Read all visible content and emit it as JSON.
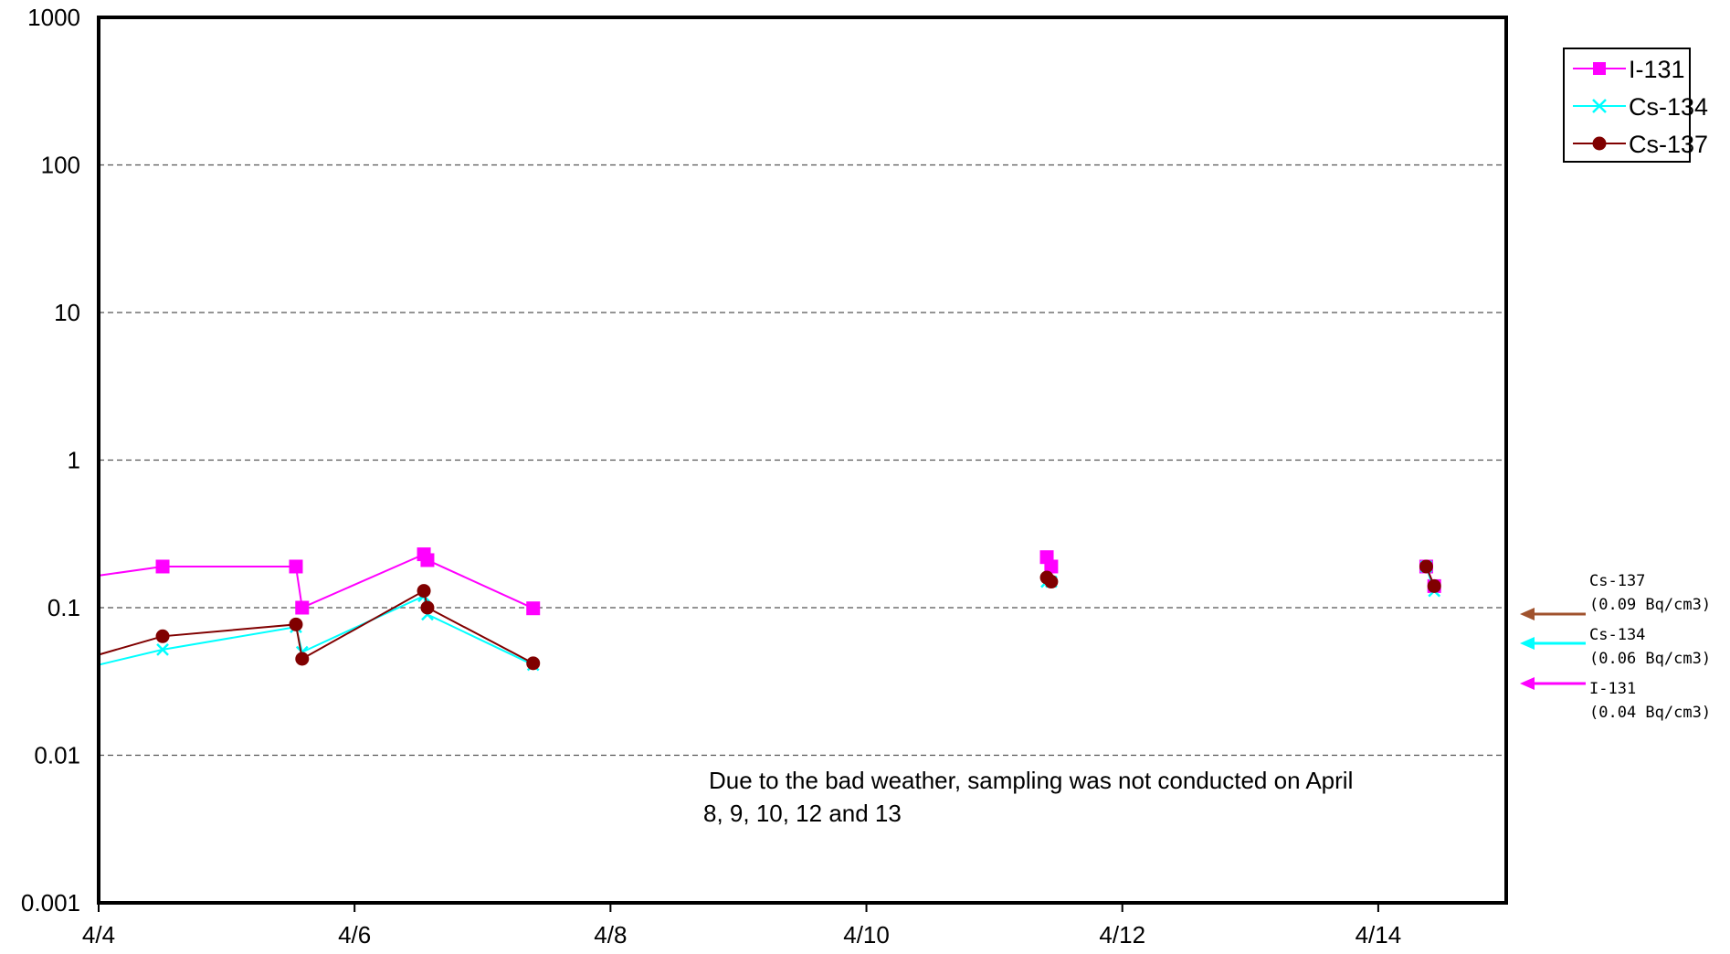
{
  "chart_data": {
    "type": "line",
    "yscale": "log",
    "ylim": [
      0.001,
      1000
    ],
    "yticks": [
      "1000",
      "100",
      "10",
      "1",
      "0.1",
      "0.01",
      "0.001"
    ],
    "xlim": [
      "4/4",
      "4/15 12:00"
    ],
    "xticks": [
      "4/4",
      "4/6",
      "4/8",
      "4/10",
      "4/12",
      "4/14"
    ],
    "grid": "horizontal dashed",
    "legend_position": "top-right",
    "series": [
      {
        "name": "I-131",
        "color": "#ff00ff",
        "marker": "square",
        "segments": [
          [
            [
              "4/4 00:00",
              0.165
            ],
            [
              "4/4 12:00",
              0.19
            ],
            [
              "4/5 13:00",
              0.19
            ],
            [
              "4/5 14:10",
              0.1
            ],
            [
              "4/6 13:00",
              0.23
            ],
            [
              "4/6 13:40",
              0.21
            ],
            [
              "4/7 09:30",
              0.099
            ]
          ],
          [
            [
              "4/11 09:50",
              0.22
            ],
            [
              "4/11 10:40",
              0.19
            ]
          ],
          [
            [
              "4/14 09:00",
              0.19
            ],
            [
              "4/14 10:30",
              0.14
            ]
          ]
        ]
      },
      {
        "name": "Cs-134",
        "color": "#00ffff",
        "marker": "x",
        "segments": [
          [
            [
              "4/4 00:00",
              0.041
            ],
            [
              "4/4 12:00",
              0.052
            ],
            [
              "4/5 13:00",
              0.074
            ],
            [
              "4/5 14:10",
              0.05
            ],
            [
              "4/6 13:00",
              0.12
            ],
            [
              "4/6 13:40",
              0.09
            ],
            [
              "4/7 09:30",
              0.041
            ]
          ],
          [
            [
              "4/11 09:50",
              0.15
            ],
            [
              "4/11 10:40",
              0.15
            ]
          ],
          [
            [
              "4/14 09:00",
              0.19
            ],
            [
              "4/14 10:30",
              0.13
            ]
          ]
        ]
      },
      {
        "name": "Cs-137",
        "color": "#800000",
        "marker": "circle",
        "segments": [
          [
            [
              "4/4 00:00",
              0.048
            ],
            [
              "4/4 12:00",
              0.064
            ],
            [
              "4/5 13:00",
              0.077
            ],
            [
              "4/5 14:10",
              0.045
            ],
            [
              "4/6 13:00",
              0.13
            ],
            [
              "4/6 13:40",
              0.1
            ],
            [
              "4/7 09:30",
              0.042
            ]
          ],
          [
            [
              "4/11 09:50",
              0.16
            ],
            [
              "4/11 10:40",
              0.15
            ]
          ],
          [
            [
              "4/14 09:00",
              0.19
            ],
            [
              "4/14 10:30",
              0.14
            ]
          ]
        ]
      }
    ],
    "annotation_lines": [
      "Due to the bad weather, sampling was not conducted on April",
      "8, 9, 10, 12 and 13"
    ],
    "reference_levels": [
      {
        "name": "Cs-137",
        "value": 0.09,
        "label": "(0.09  Bq/cm3)",
        "color": "#a0522d"
      },
      {
        "name": "Cs-134",
        "value": 0.06,
        "label": "(0.06  Bq/cm3)",
        "color": "#00ffff"
      },
      {
        "name": "I-131",
        "value": 0.04,
        "label": "(0.04  Bq/cm3)",
        "color": "#ff00ff"
      }
    ]
  }
}
